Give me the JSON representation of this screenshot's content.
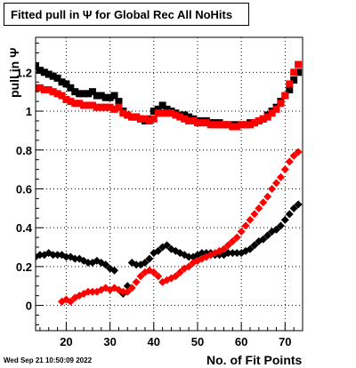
{
  "chart_data": {
    "type": "scatter",
    "title": "Fitted pull in  Ψ  for Global Rec All NoHits",
    "xlabel": "No. of Fit Points",
    "ylabel": "pull in  Ψ",
    "xlim": [
      13,
      74
    ],
    "ylim": [
      -0.13,
      1.38
    ],
    "xticks": [
      20,
      30,
      40,
      50,
      60,
      70
    ],
    "yticks": [
      0,
      0.2,
      0.4,
      0.6,
      0.8,
      1,
      1.2
    ],
    "ytick_labels": [
      "0",
      "0.2",
      "0.4",
      "0.6",
      "0.8",
      "1",
      "1.2"
    ],
    "grid": true,
    "series": [
      {
        "marker": "square",
        "color": "#000000",
        "x": [
          13,
          14,
          15,
          16,
          17,
          18,
          19,
          20,
          21,
          22,
          23,
          24,
          25,
          26,
          27,
          28,
          29,
          30,
          31,
          32,
          33,
          34,
          35,
          36,
          37,
          38,
          39,
          40,
          41,
          42,
          43,
          44,
          45,
          46,
          47,
          48,
          49,
          50,
          51,
          52,
          53,
          54,
          55,
          56,
          57,
          58,
          59,
          60,
          61,
          62,
          63,
          64,
          65,
          66,
          67,
          68,
          69,
          70,
          71,
          72,
          73
        ],
        "y": [
          1.23,
          1.21,
          1.2,
          1.19,
          1.18,
          1.17,
          1.15,
          1.14,
          1.12,
          1.1,
          1.09,
          1.09,
          1.09,
          1.1,
          1.08,
          1.08,
          1.07,
          1.07,
          1.08,
          1.05,
          1.0,
          0.98,
          0.97,
          0.97,
          0.96,
          0.95,
          0.96,
          1.0,
          1.01,
          1.03,
          1.01,
          1.0,
          0.99,
          0.98,
          0.98,
          0.97,
          0.96,
          0.95,
          0.95,
          0.95,
          0.94,
          0.94,
          0.94,
          0.93,
          0.93,
          0.93,
          0.93,
          0.93,
          0.93,
          0.94,
          0.94,
          0.95,
          0.96,
          0.98,
          1.0,
          1.02,
          1.05,
          1.08,
          1.11,
          1.16,
          1.2
        ]
      },
      {
        "marker": "square",
        "color": "#ff0000",
        "x": [
          13,
          14,
          15,
          16,
          17,
          18,
          19,
          20,
          21,
          22,
          23,
          24,
          25,
          26,
          27,
          28,
          29,
          30,
          31,
          32,
          33,
          34,
          35,
          36,
          37,
          38,
          39,
          40,
          41,
          42,
          43,
          44,
          45,
          46,
          47,
          48,
          49,
          50,
          51,
          52,
          53,
          54,
          55,
          56,
          57,
          58,
          59,
          60,
          61,
          62,
          63,
          64,
          65,
          66,
          67,
          68,
          69,
          70,
          71,
          72,
          73
        ],
        "y": [
          1.12,
          1.12,
          1.11,
          1.11,
          1.1,
          1.09,
          1.08,
          1.06,
          1.05,
          1.04,
          1.04,
          1.03,
          1.03,
          1.03,
          1.02,
          1.02,
          1.02,
          1.02,
          1.01,
          1.02,
          0.99,
          0.98,
          0.97,
          0.97,
          0.96,
          0.96,
          0.95,
          0.96,
          0.99,
          0.99,
          0.99,
          0.99,
          0.98,
          0.97,
          0.96,
          0.95,
          0.95,
          0.94,
          0.94,
          0.94,
          0.93,
          0.93,
          0.93,
          0.93,
          0.93,
          0.92,
          0.92,
          0.93,
          0.93,
          0.93,
          0.94,
          0.95,
          0.96,
          0.97,
          0.99,
          1.01,
          1.04,
          1.08,
          1.14,
          1.2,
          1.24
        ]
      },
      {
        "marker": "diamond",
        "color": "#000000",
        "x": [
          13,
          14,
          15,
          16,
          17,
          18,
          19,
          20,
          21,
          22,
          23,
          24,
          25,
          26,
          27,
          28,
          29,
          30,
          31,
          32,
          33,
          34,
          35,
          36,
          37,
          38,
          39,
          40,
          41,
          42,
          43,
          44,
          45,
          46,
          47,
          48,
          49,
          50,
          51,
          52,
          53,
          54,
          55,
          56,
          57,
          58,
          59,
          60,
          61,
          62,
          63,
          64,
          65,
          66,
          67,
          68,
          69,
          70,
          71,
          72,
          73
        ],
        "y": [
          0.25,
          0.26,
          0.26,
          0.27,
          0.26,
          0.26,
          0.26,
          0.25,
          0.25,
          0.24,
          0.24,
          0.23,
          0.22,
          0.22,
          0.23,
          0.22,
          0.21,
          0.19,
          0.18,
          null,
          0.06,
          0.1,
          0.22,
          0.21,
          0.21,
          0.22,
          0.24,
          0.27,
          0.28,
          0.3,
          0.31,
          0.29,
          0.28,
          0.27,
          0.26,
          0.25,
          0.25,
          0.26,
          0.27,
          0.27,
          0.27,
          0.26,
          0.26,
          0.26,
          0.27,
          0.27,
          0.27,
          0.27,
          0.28,
          0.29,
          0.31,
          0.33,
          0.34,
          0.36,
          0.38,
          0.39,
          0.41,
          0.44,
          0.47,
          0.5,
          0.52
        ]
      },
      {
        "marker": "diamond",
        "color": "#ff0000",
        "x": [
          13,
          14,
          15,
          16,
          17,
          18,
          19,
          20,
          21,
          22,
          23,
          24,
          25,
          26,
          27,
          28,
          29,
          30,
          31,
          32,
          33,
          34,
          35,
          36,
          37,
          38,
          39,
          40,
          41,
          42,
          43,
          44,
          45,
          46,
          47,
          48,
          49,
          50,
          51,
          52,
          53,
          54,
          55,
          56,
          57,
          58,
          59,
          60,
          61,
          62,
          63,
          64,
          65,
          66,
          67,
          68,
          69,
          70,
          71,
          72,
          73
        ],
        "y": [
          null,
          null,
          null,
          null,
          null,
          null,
          0.02,
          0.03,
          0.02,
          0.04,
          0.05,
          0.06,
          0.07,
          0.07,
          0.07,
          0.08,
          0.09,
          0.08,
          0.09,
          0.08,
          0.07,
          0.07,
          0.09,
          0.12,
          0.15,
          0.17,
          0.18,
          0.17,
          0.15,
          0.12,
          0.13,
          0.14,
          0.15,
          0.17,
          0.19,
          0.2,
          0.22,
          0.23,
          0.24,
          0.25,
          0.26,
          0.27,
          0.28,
          0.29,
          0.31,
          0.33,
          0.35,
          0.38,
          0.41,
          0.44,
          0.47,
          0.5,
          0.53,
          0.56,
          0.6,
          0.63,
          0.66,
          0.7,
          0.74,
          0.77,
          0.79
        ]
      }
    ]
  },
  "footer": {
    "date": "Wed Sep 21 10:50:09 2022"
  }
}
